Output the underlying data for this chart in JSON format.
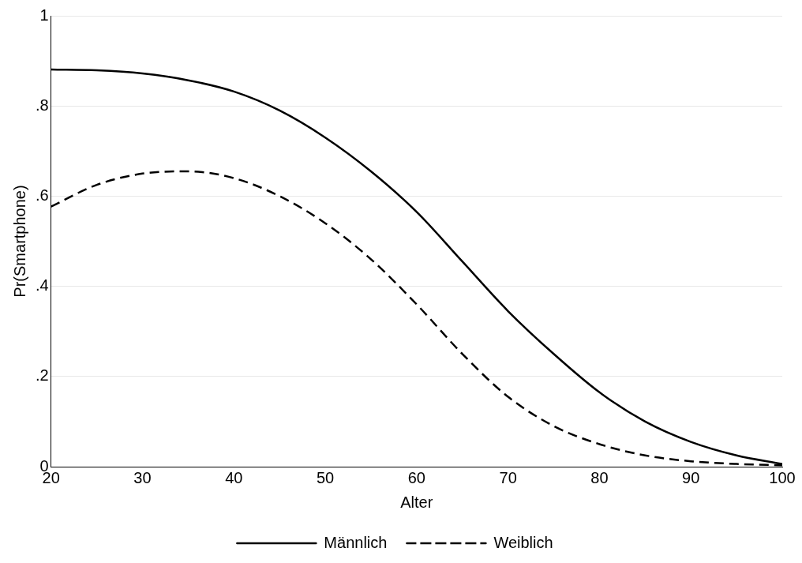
{
  "chart_data": {
    "type": "line",
    "xlabel": "Alter",
    "ylabel": "Pr(Smartphone)",
    "x": [
      20,
      25,
      30,
      35,
      40,
      45,
      50,
      55,
      60,
      65,
      70,
      75,
      80,
      85,
      90,
      95,
      100
    ],
    "series": [
      {
        "name": "Männlich",
        "color": "#000000",
        "line_style": "solid",
        "values": [
          0.881,
          0.879,
          0.872,
          0.857,
          0.832,
          0.79,
          0.73,
          0.655,
          0.565,
          0.455,
          0.345,
          0.25,
          0.165,
          0.1,
          0.055,
          0.025,
          0.006
        ]
      },
      {
        "name": "Weiblich",
        "color": "#000000",
        "line_style": "dashed",
        "values": [
          0.577,
          0.625,
          0.65,
          0.655,
          0.64,
          0.6,
          0.54,
          0.46,
          0.36,
          0.25,
          0.155,
          0.09,
          0.05,
          0.025,
          0.012,
          0.006,
          0.003
        ]
      }
    ],
    "xlim": [
      20,
      100
    ],
    "xticks": [
      20,
      30,
      40,
      50,
      60,
      70,
      80,
      90,
      100
    ],
    "ylim": [
      0,
      1
    ],
    "yticks": [
      {
        "value": 0,
        "label": "0"
      },
      {
        "value": 0.2,
        "label": ".2"
      },
      {
        "value": 0.4,
        "label": ".4"
      },
      {
        "value": 0.6,
        "label": ".6"
      },
      {
        "value": 0.8,
        "label": ".8"
      },
      {
        "value": 1,
        "label": "1"
      }
    ],
    "grid": "y",
    "legend": "bottom",
    "marker": "none"
  }
}
